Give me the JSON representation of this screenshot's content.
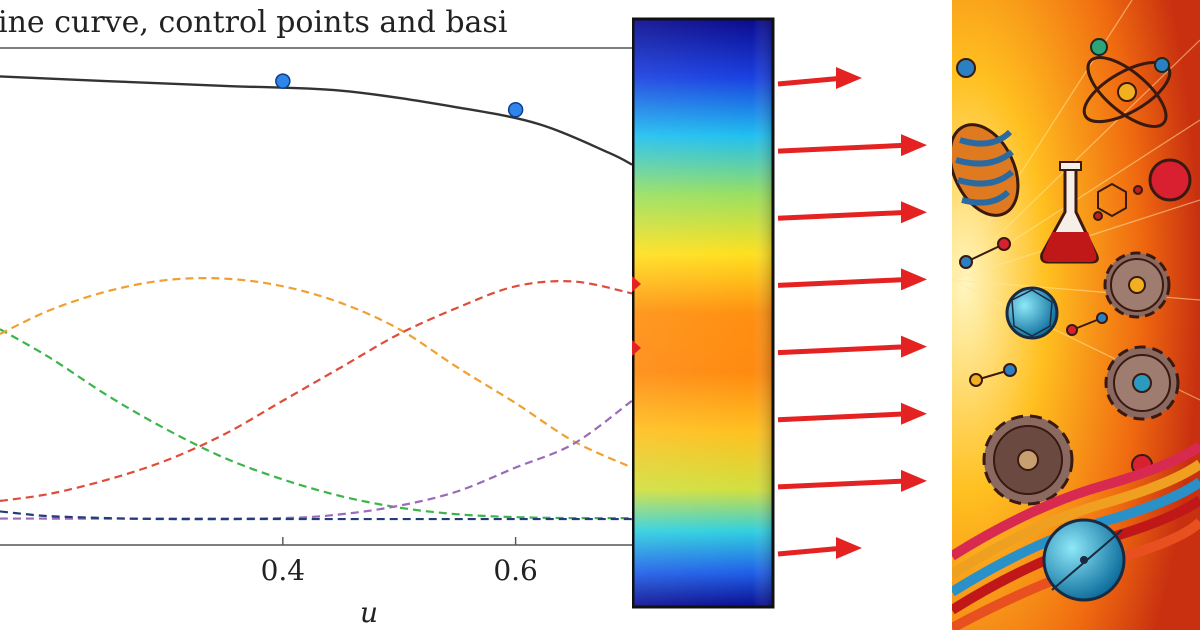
{
  "colors": {
    "curve": "#333333",
    "control_point_fill": "#2f86e8",
    "control_point_stroke": "#0d3f8a",
    "basis_orange": "#f0a030",
    "basis_red": "#e04c3c",
    "basis_green": "#3cb44b",
    "basis_purple": "#9b6ab8",
    "basis_navy": "#223e7a",
    "arrow_red": "#e52222"
  },
  "plot": {
    "title": "ine curve, control points and basi",
    "xlabel": "u",
    "xticks": [
      {
        "value": 0.4,
        "label": "0.4"
      },
      {
        "value": 0.6,
        "label": "0.6"
      }
    ]
  },
  "chart_data": {
    "type": "line",
    "title": "ine curve, control points and basi",
    "xlabel": "u",
    "ylabel": "",
    "xlim": [
      0.157,
      0.7
    ],
    "ylim": [
      0.0,
      1.0
    ],
    "series": [
      {
        "role": "curve",
        "color_key": "curve",
        "dashed": false,
        "x": [
          0.157,
          0.25,
          0.35,
          0.45,
          0.55,
          0.62,
          0.68,
          0.7
        ],
        "y": [
          0.93,
          0.92,
          0.91,
          0.9,
          0.865,
          0.83,
          0.77,
          0.745
        ]
      },
      {
        "role": "control-points",
        "color_key": "control_point_fill",
        "markers": true,
        "x": [
          0.4,
          0.6
        ],
        "y": [
          0.92,
          0.86
        ]
      },
      {
        "role": "basis",
        "color_key": "basis_green",
        "dashed": true,
        "x": [
          0.157,
          0.2,
          0.25,
          0.3,
          0.35,
          0.4,
          0.45,
          0.5,
          0.55,
          0.6,
          0.65,
          0.7
        ],
        "y": [
          0.4,
          0.34,
          0.26,
          0.19,
          0.13,
          0.085,
          0.05,
          0.026,
          0.012,
          0.006,
          0.004,
          0.004
        ]
      },
      {
        "role": "basis",
        "color_key": "basis_orange",
        "dashed": true,
        "x": [
          0.157,
          0.2,
          0.25,
          0.3,
          0.35,
          0.4,
          0.45,
          0.5,
          0.55,
          0.6,
          0.65,
          0.7
        ],
        "y": [
          0.39,
          0.44,
          0.48,
          0.503,
          0.506,
          0.49,
          0.455,
          0.4,
          0.32,
          0.245,
          0.165,
          0.11
        ]
      },
      {
        "role": "basis",
        "color_key": "basis_red",
        "dashed": true,
        "x": [
          0.157,
          0.2,
          0.25,
          0.3,
          0.35,
          0.4,
          0.45,
          0.5,
          0.55,
          0.6,
          0.65,
          0.7
        ],
        "y": [
          0.04,
          0.055,
          0.085,
          0.125,
          0.18,
          0.25,
          0.32,
          0.39,
          0.445,
          0.49,
          0.5,
          0.475
        ]
      },
      {
        "role": "basis",
        "color_key": "basis_purple",
        "dashed": true,
        "x": [
          0.157,
          0.3,
          0.4,
          0.45,
          0.5,
          0.55,
          0.6,
          0.65,
          0.7
        ],
        "y": [
          0.003,
          0.003,
          0.004,
          0.012,
          0.03,
          0.06,
          0.11,
          0.16,
          0.25
        ]
      },
      {
        "role": "basis",
        "color_key": "basis_navy",
        "dashed": true,
        "x": [
          0.157,
          0.18,
          0.2,
          0.25,
          0.3,
          0.4,
          0.5,
          0.6,
          0.7
        ],
        "y": [
          0.018,
          0.012,
          0.008,
          0.004,
          0.002,
          0.002,
          0.002,
          0.002,
          0.002
        ]
      }
    ]
  },
  "gradient": {
    "stops": [
      {
        "offset": 0.0,
        "color": "#0a0a8c"
      },
      {
        "offset": 0.1,
        "color": "#1a40e0"
      },
      {
        "offset": 0.2,
        "color": "#20c0f0"
      },
      {
        "offset": 0.3,
        "color": "#9ae060"
      },
      {
        "offset": 0.4,
        "color": "#ffe020"
      },
      {
        "offset": 0.5,
        "color": "#ff9010"
      },
      {
        "offset": 0.6,
        "color": "#ff8a10"
      },
      {
        "offset": 0.7,
        "color": "#ffc020"
      },
      {
        "offset": 0.8,
        "color": "#d0e040"
      },
      {
        "offset": 0.87,
        "color": "#30d0e0"
      },
      {
        "offset": 0.94,
        "color": "#2060e8"
      },
      {
        "offset": 1.0,
        "color": "#0a0a8c"
      }
    ],
    "arrow_count": 8
  },
  "illustration": {
    "icons": [
      "science-collage-icon",
      "flask-icon",
      "gear-icon",
      "atom-icon",
      "molecule-icon",
      "dna-spring-icon",
      "sphere-icon"
    ]
  }
}
